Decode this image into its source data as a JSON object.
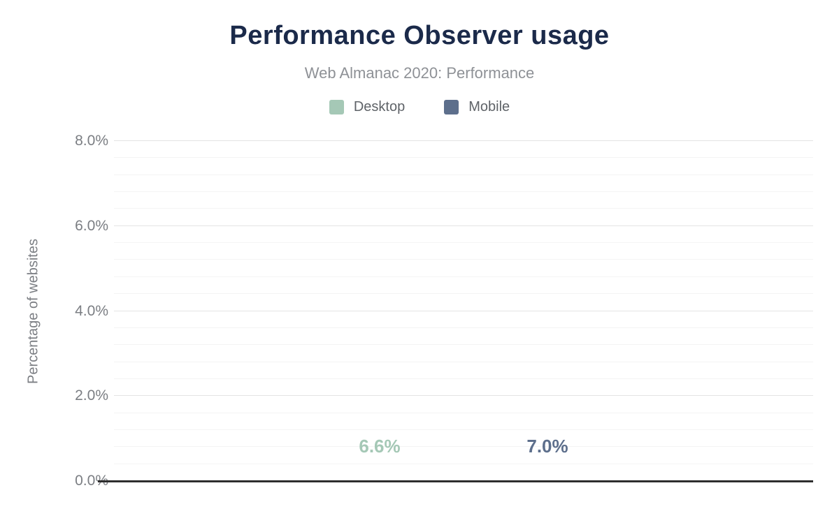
{
  "chart_data": {
    "type": "bar",
    "title": "Performance Observer usage",
    "subtitle": "Web Almanac 2020: Performance",
    "ylabel": "Percentage of websites",
    "xlabel": "",
    "categories": [
      "Desktop",
      "Mobile"
    ],
    "series": [
      {
        "name": "Desktop",
        "value": 6.6,
        "value_label": "6.6%",
        "color": "#a5c8b6"
      },
      {
        "name": "Mobile",
        "value": 7.0,
        "value_label": "7.0%",
        "color": "#5d6f8c"
      }
    ],
    "ylim": [
      0,
      8
    ],
    "yticks": [
      {
        "value": 0,
        "label": "0.0%"
      },
      {
        "value": 2,
        "label": "2.0%"
      },
      {
        "value": 4,
        "label": "4.0%"
      },
      {
        "value": 6,
        "label": "6.0%"
      },
      {
        "value": 8,
        "label": "8.0%"
      }
    ],
    "grid": {
      "minor_step": 0.4,
      "major_step": 2,
      "minor_color": "#f4f4f4",
      "major_color": "#e4e4e4"
    },
    "legend_position": "top",
    "colors": {
      "title": "#1b2a4a",
      "subtitle": "#8e9196",
      "axis_text": "#7b7e83",
      "legend_text": "#5f6368",
      "axis_line": "#2e2e2e",
      "background": "#ffffff"
    }
  }
}
